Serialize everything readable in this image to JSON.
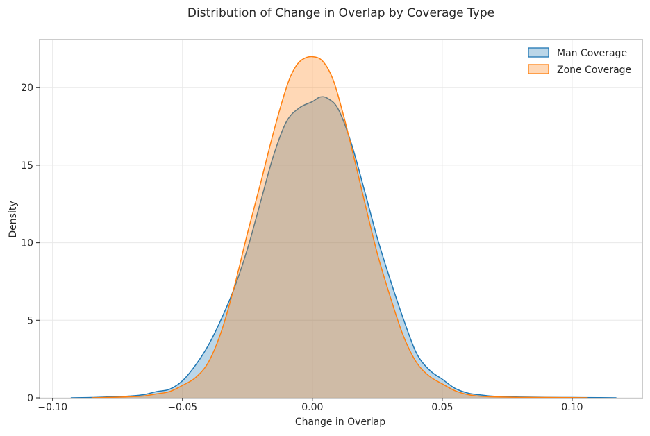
{
  "chart_data": {
    "type": "area",
    "title": "Distribution of Change in Overlap by Coverage Type",
    "xlabel": "Change in Overlap",
    "ylabel": "Density",
    "xlim": [
      -0.105,
      0.127
    ],
    "ylim": [
      0,
      23.1
    ],
    "xticks": [
      -0.1,
      -0.05,
      0.0,
      0.05,
      0.1
    ],
    "xtick_labels": [
      "−0.10",
      "−0.05",
      "0.00",
      "0.05",
      "0.10"
    ],
    "yticks": [
      0,
      5,
      10,
      15,
      20
    ],
    "ytick_labels": [
      "0",
      "5",
      "10",
      "15",
      "20"
    ],
    "grid": true,
    "legend_position": "top-right",
    "series": [
      {
        "name": "Man Coverage",
        "line_color": "#1f77b4",
        "fill_color": "#1f77b4",
        "x": [
          -0.093,
          -0.085,
          -0.08,
          -0.075,
          -0.07,
          -0.065,
          -0.06,
          -0.055,
          -0.05,
          -0.045,
          -0.04,
          -0.035,
          -0.03,
          -0.025,
          -0.02,
          -0.015,
          -0.01,
          -0.005,
          0.0,
          0.003,
          0.006,
          0.01,
          0.015,
          0.02,
          0.025,
          0.03,
          0.035,
          0.04,
          0.045,
          0.05,
          0.055,
          0.06,
          0.065,
          0.07,
          0.08,
          0.09,
          0.1,
          0.11,
          0.117
        ],
        "y": [
          0.0,
          0.02,
          0.05,
          0.08,
          0.12,
          0.2,
          0.4,
          0.55,
          1.1,
          2.1,
          3.4,
          5.1,
          7.1,
          9.6,
          12.6,
          15.6,
          17.8,
          18.7,
          19.1,
          19.4,
          19.3,
          18.6,
          16.4,
          13.4,
          10.3,
          7.6,
          5.1,
          2.9,
          1.8,
          1.2,
          0.6,
          0.3,
          0.18,
          0.1,
          0.05,
          0.03,
          0.02,
          0.01,
          0.0
        ]
      },
      {
        "name": "Zone Coverage",
        "line_color": "#ff7f0e",
        "fill_color": "#ff7f0e",
        "x": [
          -0.085,
          -0.08,
          -0.075,
          -0.07,
          -0.065,
          -0.06,
          -0.055,
          -0.05,
          -0.045,
          -0.04,
          -0.035,
          -0.03,
          -0.025,
          -0.02,
          -0.015,
          -0.01,
          -0.007,
          -0.004,
          0.0,
          0.004,
          0.008,
          0.012,
          0.016,
          0.02,
          0.025,
          0.03,
          0.035,
          0.04,
          0.045,
          0.05,
          0.055,
          0.06,
          0.065,
          0.07,
          0.08,
          0.09,
          0.1,
          0.106
        ],
        "y": [
          0.0,
          0.02,
          0.04,
          0.07,
          0.12,
          0.25,
          0.4,
          0.8,
          1.3,
          2.3,
          4.3,
          7.2,
          10.6,
          13.8,
          17.1,
          20.0,
          21.2,
          21.8,
          22.0,
          21.7,
          20.5,
          18.2,
          15.5,
          12.7,
          9.3,
          6.5,
          4.0,
          2.3,
          1.4,
          0.9,
          0.45,
          0.2,
          0.1,
          0.06,
          0.03,
          0.02,
          0.01,
          0.0
        ]
      }
    ]
  },
  "colors": {
    "man": "#1f77b4",
    "zone": "#ff7f0e",
    "grid": "#e8e8e8",
    "frame": "#cccccc",
    "text": "#262626"
  }
}
